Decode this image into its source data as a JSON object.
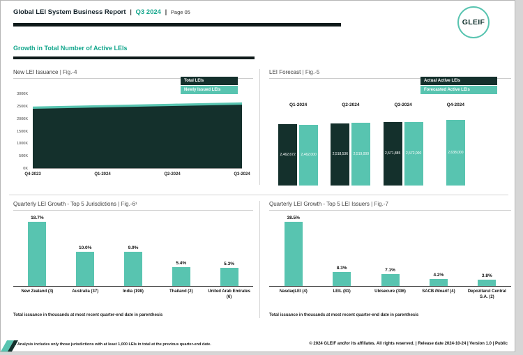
{
  "colors": {
    "dark": "#14302c",
    "teal": "#58c4b0",
    "teal_text": "#13a68c"
  },
  "header": {
    "title": "Global LEI System Business Report",
    "sep": "|",
    "quarter": "Q3 2024",
    "sep2": "|",
    "page_label": "Page 05",
    "logo_text": "GLEIF"
  },
  "section_title": "Growth in Total Number of Active LEIs",
  "chart_data": [
    {
      "type": "area",
      "title": "New LEI Issuance",
      "fig_label": "| Fig.-4",
      "legend": [
        {
          "label": "Total LEIs",
          "color": "#14302c"
        },
        {
          "label": "Newly Issued LEIs",
          "color": "#58c4b0"
        }
      ],
      "categories": [
        "Q4-2023",
        "Q1-2024",
        "Q2-2024",
        "Q3-2024"
      ],
      "series": [
        {
          "name": "Total LEIs",
          "values": [
            2405000,
            2462672,
            2518536,
            2571885
          ]
        },
        {
          "name": "Newly Issued LEIs",
          "values": [
            90000,
            92000,
            95000,
            93000
          ]
        }
      ],
      "yticks": [
        "0K",
        "500K",
        "1000K",
        "1500K",
        "2000K",
        "2500K",
        "3000K"
      ],
      "ylim": [
        0,
        3000000
      ],
      "legend_position": "top-right"
    },
    {
      "type": "bar",
      "title": "LEI Forecast",
      "fig_label": "| Fig.-5",
      "legend": [
        {
          "label": "Actual Active LEIs",
          "color": "#14302c"
        },
        {
          "label": "Forecasted Active LEIs",
          "color": "#58c4b0"
        }
      ],
      "categories": [
        "Q1-2024",
        "Q2-2024",
        "Q3-2024",
        "Q4-2024"
      ],
      "series": [
        {
          "name": "Actual Active LEIs",
          "values": [
            2462672,
            2518536,
            2571885,
            null
          ],
          "labels": [
            "2,462,672",
            "2,518,536",
            "2,571,885",
            ""
          ]
        },
        {
          "name": "Forecasted Active LEIs",
          "values": [
            2462000,
            2519000,
            2572000,
            2638000
          ],
          "labels": [
            "2,462,000",
            "2,519,000",
            "2,572,000",
            "2,638,000"
          ]
        }
      ],
      "ylim": [
        0,
        2700000
      ],
      "legend_position": "top-right"
    },
    {
      "type": "bar",
      "title": "Quarterly LEI Growth - Top 5 Jurisdictions",
      "fig_label": "| Fig.-6¹",
      "categories": [
        "New Zealand (3)",
        "Australia (37)",
        "India (198)",
        "Thailand (2)",
        "United Arab Emirates (6)"
      ],
      "values": [
        18.7,
        10.0,
        9.9,
        5.4,
        5.3
      ],
      "labels": [
        "18.7%",
        "10.0%",
        "9.9%",
        "5.4%",
        "5.3%"
      ],
      "note": "Total issuance in thousands at most recent quarter-end date in parenthesis"
    },
    {
      "type": "bar",
      "title": "Quarterly LEI Growth - Top 5 LEI Issuers",
      "fig_label": "| Fig.-7",
      "categories": [
        "NasdaqLEI (4)",
        "LEIL (81)",
        "Ubisecure (336)",
        "SACB /Moarif (4)",
        "Depozitarul Central S.A. (2)"
      ],
      "values": [
        38.5,
        8.3,
        7.1,
        4.2,
        3.8
      ],
      "labels": [
        "38.5%",
        "8.3%",
        "7.1%",
        "4.2%",
        "3.8%"
      ],
      "note": "Total issuance in thousands at most recent quarter-end date in parenthesis"
    }
  ],
  "footnote": "1. Analysis includes only those jurisdictions with at least 1,000 LEIs in total at the previous quarter-end date.",
  "footer": "© 2024 GLEIF and/or its affiliates. All rights reserved.  |  Release date 2024-10-24  |  Version 1.0  |  Public"
}
